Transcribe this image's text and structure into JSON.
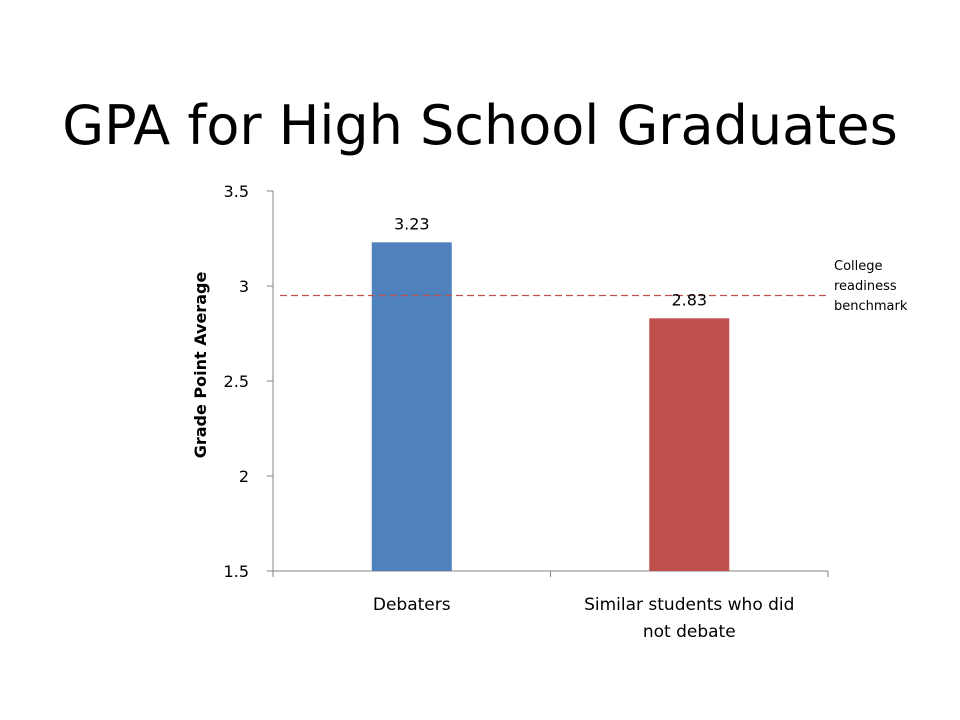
{
  "chart_data": {
    "type": "bar",
    "title": "GPA for High School Graduates",
    "ylabel": "Grade Point Average",
    "xlabel": "",
    "ylim": [
      1.5,
      3.5
    ],
    "yticks": [
      1.5,
      2,
      2.5,
      3,
      3.5
    ],
    "ytick_labels": [
      "1.5",
      "2",
      "2.5",
      "3",
      "3.5"
    ],
    "categories": [
      {
        "lines": [
          "Debaters"
        ]
      },
      {
        "lines": [
          "Similar students who did",
          "not debate"
        ]
      }
    ],
    "values": [
      3.23,
      2.83
    ],
    "data_labels": [
      "3.23",
      "2.83"
    ],
    "bar_colors": [
      "#4f81bd",
      "#c0504d"
    ],
    "grid": false,
    "reference_line": {
      "value": 2.95,
      "color": "#c0504d",
      "style": "dashed",
      "label_lines": [
        "College",
        "readiness",
        "benchmark"
      ]
    }
  }
}
